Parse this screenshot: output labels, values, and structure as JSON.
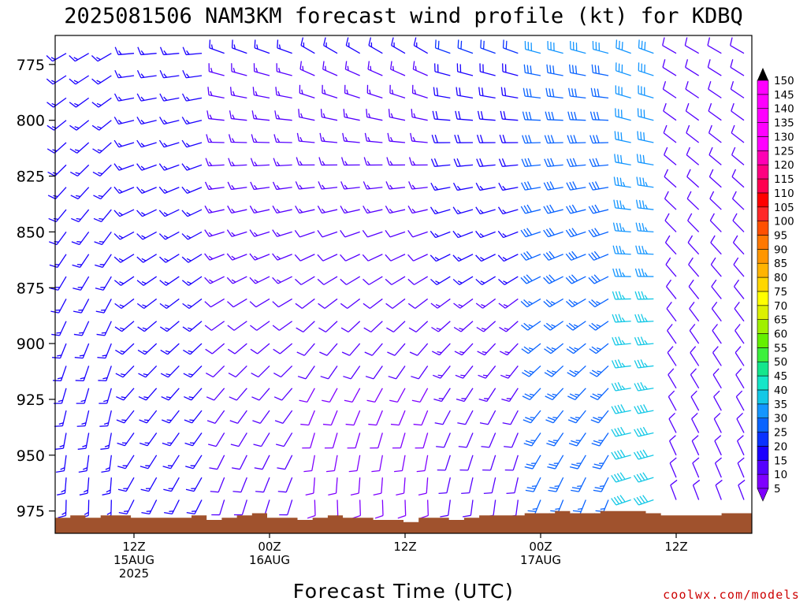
{
  "title": "2025081506 NAM3KM forecast wind profile (kt) for KDBQ",
  "credit": "coolwx.com/models",
  "colors": {
    "terrain": "#a0522d",
    "credit": "#cc0000",
    "scale": [
      "#7f00ff",
      "#5500ff",
      "#1a00ff",
      "#0a32ff",
      "#0a64ff",
      "#1496ff",
      "#14c8e6",
      "#14e6c8",
      "#14e68c",
      "#3cf03c",
      "#64f000",
      "#a0f000",
      "#dcf000",
      "#ffff00",
      "#ffd700",
      "#ffb400",
      "#ff9600",
      "#ff7800",
      "#ff5000",
      "#ff2828",
      "#ff0000",
      "#ff0050",
      "#ff0080",
      "#ff00b4",
      "#ff00ff"
    ]
  },
  "chart_data": {
    "type": "wind-barb-time-height",
    "title": "2025081506 NAM3KM forecast wind profile (kt) for KDBQ",
    "xlabel": "Forecast Time (UTC)",
    "ylabel": "",
    "y_reversed": true,
    "ylim": [
      985,
      762
    ],
    "y_ticks": [
      775,
      800,
      825,
      850,
      875,
      900,
      925,
      950,
      975
    ],
    "x_range_hours": [
      0,
      60
    ],
    "x_ticks": [
      {
        "hour": 6,
        "label": "12Z",
        "sub": "15AUG",
        "sub2": "2025"
      },
      {
        "hour": 18,
        "label": "00Z",
        "sub": "16AUG",
        "sub2": ""
      },
      {
        "hour": 30,
        "label": "12Z",
        "sub": "",
        "sub2": ""
      },
      {
        "hour": 42,
        "label": "00Z",
        "sub": "17AUG",
        "sub2": ""
      },
      {
        "hour": 54,
        "label": "12Z",
        "sub": "",
        "sub2": ""
      }
    ],
    "grid": false,
    "legend": {
      "placement": "right",
      "units": "kt",
      "values": [
        5,
        10,
        15,
        20,
        25,
        30,
        35,
        40,
        45,
        50,
        55,
        60,
        65,
        70,
        75,
        80,
        85,
        90,
        95,
        100,
        105,
        110,
        115,
        120,
        125,
        130,
        135,
        140,
        145,
        150
      ]
    },
    "surface_pressure": [
      978,
      977,
      978,
      977,
      977,
      978,
      978,
      978,
      978,
      977,
      979,
      978,
      977,
      976,
      978,
      978,
      979,
      978,
      977,
      978,
      978,
      979,
      979,
      980,
      978,
      978,
      979,
      978,
      977,
      977,
      977,
      976,
      976,
      975,
      976,
      976,
      975,
      975,
      975,
      976,
      977,
      977,
      977,
      977,
      976,
      976
    ],
    "levels": [
      770,
      780,
      790,
      800,
      810,
      820,
      830,
      840,
      850,
      860,
      870,
      880,
      890,
      900,
      910,
      920,
      930,
      940,
      950,
      960,
      970
    ],
    "hours": [
      0,
      2,
      4,
      6,
      8,
      10,
      12,
      14,
      16,
      18,
      20,
      22,
      24,
      26,
      28,
      30,
      32,
      34,
      36,
      38,
      40,
      42,
      44,
      46,
      48,
      50,
      52,
      54,
      56,
      58,
      60
    ],
    "wind_periods": [
      {
        "from_hour": 0,
        "to_hour": 6,
        "low_dir": 180,
        "high_dir": 240,
        "low_speed": 15,
        "high_speed": 15
      },
      {
        "from_hour": 6,
        "to_hour": 14,
        "low_dir": 205,
        "high_dir": 265,
        "low_speed": 15,
        "high_speed": 15
      },
      {
        "from_hour": 14,
        "to_hour": 22,
        "low_dir": 195,
        "high_dir": 290,
        "low_speed": 10,
        "high_speed": 15
      },
      {
        "from_hour": 22,
        "to_hour": 34,
        "low_dir": 175,
        "high_dir": 300,
        "low_speed": 8,
        "high_speed": 15
      },
      {
        "from_hour": 34,
        "to_hour": 42,
        "low_dir": 185,
        "high_dir": 290,
        "low_speed": 10,
        "high_speed": 20
      },
      {
        "from_hour": 42,
        "to_hour": 49,
        "low_dir": 200,
        "high_dir": 285,
        "low_speed": 25,
        "high_speed": 30
      },
      {
        "from_hour": 49,
        "to_hour": 54,
        "low_dir": 250,
        "high_dir": 290,
        "low_speed": 40,
        "high_speed": 30
      },
      {
        "from_hour": 54,
        "to_hour": 60,
        "low_dir": 340,
        "high_dir": 300,
        "low_speed": 10,
        "high_speed": 10
      }
    ]
  }
}
